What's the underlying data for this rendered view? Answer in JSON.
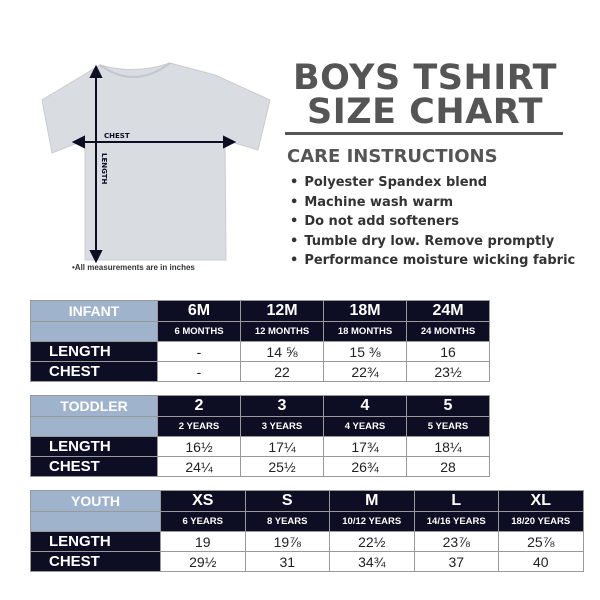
{
  "title_line1": "BOYS TSHIRT",
  "title_line2": "SIZE CHART",
  "care_heading": "CARE INSTRUCTIONS",
  "care_items": [
    "Polyester Spandex blend",
    "Machine wash warm",
    "Do not add softeners",
    "Tumble dry low. Remove promptly",
    "Performance moisture wicking fabric"
  ],
  "diagram": {
    "chest_label": "CHEST",
    "length_label": "LENGTH",
    "shirt_color": "#d9dce1",
    "arrow_color": "#0d0d24"
  },
  "note": "•All measurements are in inches",
  "colors": {
    "header": "#0d0d24",
    "label": "#9fb4cc"
  },
  "tables": [
    {
      "label": "INFANT",
      "sizes": [
        "6M",
        "12M",
        "18M",
        "24M"
      ],
      "ages": [
        "6 MONTHS",
        "12 MONTHS",
        "18 MONTHS",
        "24 MONTHS"
      ],
      "rows": [
        {
          "label": "LENGTH",
          "values": [
            "-",
            "14 ⅝",
            "15 ⅜",
            "16"
          ]
        },
        {
          "label": "CHEST",
          "values": [
            "-",
            "22",
            "22¾",
            "23½"
          ]
        }
      ]
    },
    {
      "label": "TODDLER",
      "sizes": [
        "2",
        "3",
        "4",
        "5"
      ],
      "ages": [
        "2 YEARS",
        "3 YEARS",
        "4 YEARS",
        "5 YEARS"
      ],
      "rows": [
        {
          "label": "LENGTH",
          "values": [
            "16½",
            "17¼",
            "17¾",
            "18¼"
          ]
        },
        {
          "label": "CHEST",
          "values": [
            "24¼",
            "25½",
            "26¾",
            "28"
          ]
        }
      ]
    },
    {
      "label": "YOUTH",
      "sizes": [
        "XS",
        "S",
        "M",
        "L",
        "XL"
      ],
      "ages": [
        "6 YEARS",
        "8 YEARS",
        "10/12 YEARS",
        "14/16 YEARS",
        "18/20 YEARS"
      ],
      "rows": [
        {
          "label": "LENGTH",
          "values": [
            "19",
            "19⅞",
            "22½",
            "23⅞",
            "25⅞"
          ]
        },
        {
          "label": "CHEST",
          "values": [
            "29½",
            "31",
            "34¾",
            "37",
            "40"
          ]
        }
      ]
    }
  ]
}
